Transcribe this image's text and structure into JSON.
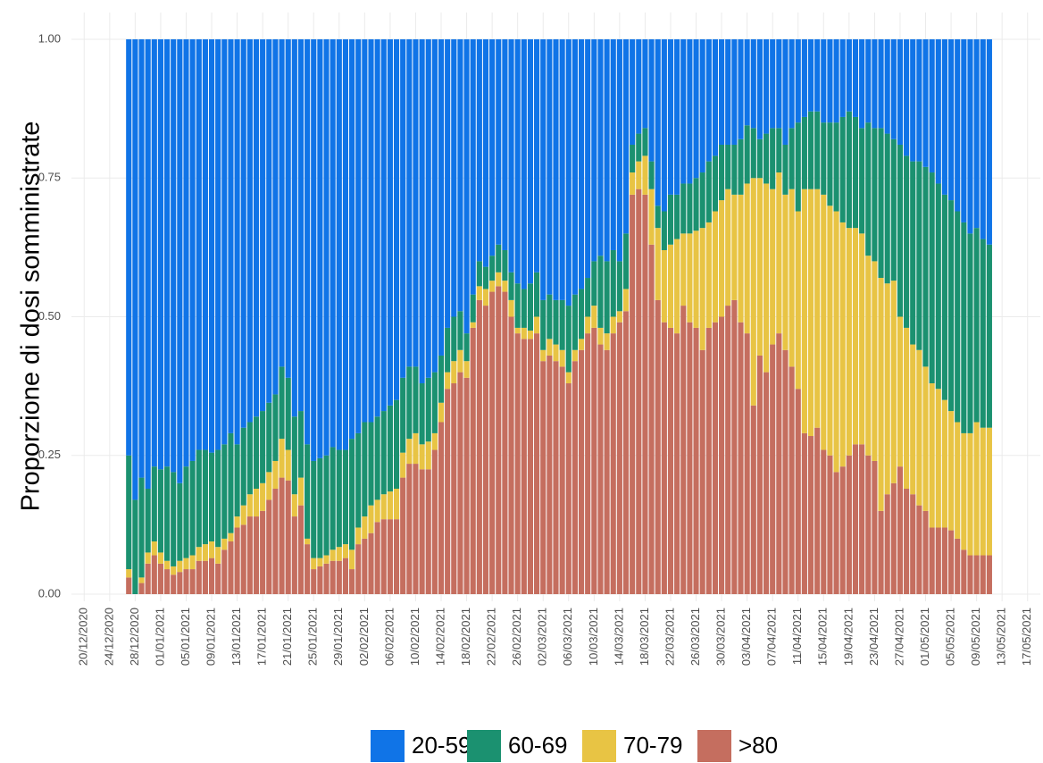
{
  "chart_data": {
    "type": "stacked_bar",
    "y_label": "Proporzione di dosi somministrate",
    "grid": true,
    "legend": "bottom",
    "x": [
      "27/12/2020",
      "28/12/2020",
      "29/12/2020",
      "30/12/2020",
      "31/12/2020",
      "01/01/2021",
      "02/01/2021",
      "03/01/2021",
      "04/01/2021",
      "05/01/2021",
      "06/01/2021",
      "07/01/2021",
      "08/01/2021",
      "09/01/2021",
      "10/01/2021",
      "11/01/2021",
      "12/01/2021",
      "13/01/2021",
      "14/01/2021",
      "15/01/2021",
      "16/01/2021",
      "17/01/2021",
      "18/01/2021",
      "19/01/2021",
      "20/01/2021",
      "21/01/2021",
      "22/01/2021",
      "23/01/2021",
      "24/01/2021",
      "25/01/2021",
      "26/01/2021",
      "27/01/2021",
      "28/01/2021",
      "29/01/2021",
      "30/01/2021",
      "31/01/2021",
      "01/02/2021",
      "02/02/2021",
      "03/02/2021",
      "04/02/2021",
      "05/02/2021",
      "06/02/2021",
      "07/02/2021",
      "08/02/2021",
      "09/02/2021",
      "10/02/2021",
      "11/02/2021",
      "12/02/2021",
      "13/02/2021",
      "14/02/2021",
      "15/02/2021",
      "16/02/2021",
      "17/02/2021",
      "18/02/2021",
      "19/02/2021",
      "20/02/2021",
      "21/02/2021",
      "22/02/2021",
      "23/02/2021",
      "24/02/2021",
      "25/02/2021",
      "26/02/2021",
      "27/02/2021",
      "28/02/2021",
      "01/03/2021",
      "02/03/2021",
      "03/03/2021",
      "04/03/2021",
      "05/03/2021",
      "06/03/2021",
      "07/03/2021",
      "08/03/2021",
      "09/03/2021",
      "10/03/2021",
      "11/03/2021",
      "12/03/2021",
      "13/03/2021",
      "14/03/2021",
      "15/03/2021",
      "16/03/2021",
      "17/03/2021",
      "18/03/2021",
      "19/03/2021",
      "20/03/2021",
      "21/03/2021",
      "22/03/2021",
      "23/03/2021",
      "24/03/2021",
      "25/03/2021",
      "26/03/2021",
      "27/03/2021",
      "28/03/2021",
      "29/03/2021",
      "30/03/2021",
      "31/03/2021",
      "01/04/2021",
      "02/04/2021",
      "03/04/2021",
      "04/04/2021",
      "05/04/2021",
      "06/04/2021",
      "07/04/2021",
      "08/04/2021",
      "09/04/2021",
      "10/04/2021",
      "11/04/2021",
      "12/04/2021",
      "13/04/2021",
      "14/04/2021",
      "15/04/2021",
      "16/04/2021",
      "17/04/2021",
      "18/04/2021",
      "19/04/2021",
      "20/04/2021",
      "21/04/2021",
      "22/04/2021",
      "23/04/2021",
      "24/04/2021",
      "25/04/2021",
      "26/04/2021",
      "27/04/2021",
      "28/04/2021",
      "29/04/2021",
      "30/04/2021",
      "01/05/2021",
      "02/05/2021",
      "03/05/2021",
      "04/05/2021",
      "05/05/2021",
      "06/05/2021",
      "07/05/2021",
      "08/05/2021",
      "09/05/2021",
      "10/05/2021",
      "11/05/2021"
    ],
    "xlim": [
      "18/12/2020",
      "19/05/2021"
    ],
    "xticks": [
      "20/12/2020",
      "24/12/2020",
      "28/12/2020",
      "01/01/2021",
      "05/01/2021",
      "09/01/2021",
      "13/01/2021",
      "17/01/2021",
      "21/01/2021",
      "25/01/2021",
      "29/01/2021",
      "02/02/2021",
      "06/02/2021",
      "10/02/2021",
      "14/02/2021",
      "18/02/2021",
      "22/02/2021",
      "26/02/2021",
      "02/03/2021",
      "06/03/2021",
      "10/03/2021",
      "14/03/2021",
      "18/03/2021",
      "22/03/2021",
      "26/03/2021",
      "30/03/2021",
      "03/04/2021",
      "07/04/2021",
      "11/04/2021",
      "15/04/2021",
      "19/04/2021",
      "23/04/2021",
      "27/04/2021",
      "01/05/2021",
      "05/05/2021",
      "09/05/2021",
      "13/05/2021",
      "17/05/2021"
    ],
    "ylim": [
      0,
      1
    ],
    "yticks": [
      {
        "value": 0,
        "label": "0.00"
      },
      {
        "value": 0.25,
        "label": "0.25"
      },
      {
        "value": 0.5,
        "label": "0.50"
      },
      {
        "value": 0.75,
        "label": "0.75"
      },
      {
        "value": 1,
        "label": "1.00"
      }
    ],
    "series": [
      {
        "name": "20-59",
        "color": "#1074e7",
        "values": [
          0.75,
          0.83,
          0.79,
          0.81,
          0.77,
          0.775,
          0.77,
          0.78,
          0.8,
          0.77,
          0.76,
          0.74,
          0.74,
          0.745,
          0.74,
          0.73,
          0.71,
          0.73,
          0.7,
          0.69,
          0.68,
          0.67,
          0.655,
          0.64,
          0.59,
          0.61,
          0.68,
          0.67,
          0.73,
          0.76,
          0.755,
          0.75,
          0.735,
          0.74,
          0.74,
          0.72,
          0.71,
          0.69,
          0.69,
          0.68,
          0.67,
          0.66,
          0.65,
          0.61,
          0.59,
          0.59,
          0.62,
          0.61,
          0.6,
          0.57,
          0.52,
          0.5,
          0.49,
          0.53,
          0.46,
          0.4,
          0.41,
          0.39,
          0.37,
          0.38,
          0.42,
          0.44,
          0.45,
          0.44,
          0.42,
          0.47,
          0.46,
          0.47,
          0.47,
          0.48,
          0.46,
          0.45,
          0.43,
          0.4,
          0.39,
          0.4,
          0.38,
          0.4,
          0.35,
          0.19,
          0.17,
          0.16,
          0.22,
          0.3,
          0.31,
          0.28,
          0.28,
          0.26,
          0.26,
          0.25,
          0.24,
          0.22,
          0.21,
          0.19,
          0.19,
          0.19,
          0.18,
          0.155,
          0.16,
          0.18,
          0.17,
          0.16,
          0.16,
          0.19,
          0.16,
          0.15,
          0.14,
          0.13,
          0.13,
          0.15,
          0.15,
          0.15,
          0.14,
          0.13,
          0.14,
          0.16,
          0.15,
          0.16,
          0.16,
          0.17,
          0.18,
          0.19,
          0.21,
          0.22,
          0.22,
          0.23,
          0.24,
          0.26,
          0.28,
          0.29,
          0.31,
          0.33,
          0.35,
          0.34,
          0.36,
          0.37
        ]
      },
      {
        "name": "60-69",
        "color": "#1b9170",
        "values": [
          0.205,
          0.17,
          0.18,
          0.115,
          0.135,
          0.15,
          0.17,
          0.17,
          0.14,
          0.165,
          0.17,
          0.175,
          0.17,
          0.16,
          0.175,
          0.17,
          0.18,
          0.13,
          0.14,
          0.13,
          0.13,
          0.13,
          0.125,
          0.12,
          0.13,
          0.13,
          0.14,
          0.12,
          0.17,
          0.175,
          0.18,
          0.18,
          0.185,
          0.175,
          0.17,
          0.2,
          0.17,
          0.17,
          0.15,
          0.15,
          0.15,
          0.155,
          0.16,
          0.135,
          0.13,
          0.12,
          0.11,
          0.115,
          0.11,
          0.085,
          0.08,
          0.08,
          0.07,
          0.05,
          0.05,
          0.045,
          0.04,
          0.045,
          0.05,
          0.055,
          0.05,
          0.08,
          0.07,
          0.085,
          0.08,
          0.09,
          0.08,
          0.08,
          0.09,
          0.12,
          0.1,
          0.09,
          0.07,
          0.08,
          0.13,
          0.13,
          0.12,
          0.09,
          0.1,
          0.05,
          0.05,
          0.05,
          0.05,
          0.04,
          0.07,
          0.09,
          0.08,
          0.09,
          0.09,
          0.095,
          0.1,
          0.11,
          0.1,
          0.1,
          0.08,
          0.09,
          0.1,
          0.105,
          0.09,
          0.07,
          0.09,
          0.11,
          0.08,
          0.09,
          0.11,
          0.16,
          0.13,
          0.14,
          0.14,
          0.13,
          0.15,
          0.16,
          0.19,
          0.21,
          0.2,
          0.19,
          0.24,
          0.24,
          0.27,
          0.27,
          0.255,
          0.31,
          0.31,
          0.33,
          0.34,
          0.36,
          0.38,
          0.37,
          0.37,
          0.38,
          0.38,
          0.38,
          0.36,
          0.35,
          0.34,
          0.33
        ]
      },
      {
        "name": "70-79",
        "color": "#e8c444",
        "values": [
          0.015,
          0,
          0.01,
          0.02,
          0.025,
          0.02,
          0.015,
          0.015,
          0.02,
          0.02,
          0.025,
          0.025,
          0.03,
          0.03,
          0.03,
          0.02,
          0.015,
          0.02,
          0.035,
          0.04,
          0.05,
          0.05,
          0.05,
          0.05,
          0.07,
          0.055,
          0.04,
          0.05,
          0.01,
          0.02,
          0.015,
          0.015,
          0.02,
          0.025,
          0.025,
          0.035,
          0.03,
          0.04,
          0.05,
          0.04,
          0.045,
          0.05,
          0.055,
          0.045,
          0.045,
          0.055,
          0.045,
          0.05,
          0.03,
          0.035,
          0.03,
          0.04,
          0.04,
          0.03,
          0.01,
          0.025,
          0.03,
          0.02,
          0.025,
          0.02,
          0.03,
          0.01,
          0.02,
          0.015,
          0.03,
          0.02,
          0.03,
          0.03,
          0.03,
          0.02,
          0.02,
          0.02,
          0.03,
          0.04,
          0.03,
          0.03,
          0.03,
          0.02,
          0.04,
          0.04,
          0.05,
          0.07,
          0.1,
          0.13,
          0.13,
          0.15,
          0.17,
          0.13,
          0.16,
          0.175,
          0.22,
          0.19,
          0.2,
          0.21,
          0.21,
          0.19,
          0.23,
          0.27,
          0.41,
          0.32,
          0.34,
          0.28,
          0.29,
          0.28,
          0.32,
          0.32,
          0.44,
          0.445,
          0.43,
          0.46,
          0.45,
          0.47,
          0.44,
          0.41,
          0.39,
          0.38,
          0.36,
          0.36,
          0.42,
          0.38,
          0.365,
          0.27,
          0.29,
          0.27,
          0.28,
          0.26,
          0.26,
          0.25,
          0.23,
          0.215,
          0.21,
          0.21,
          0.22,
          0.24,
          0.23,
          0.23
        ]
      },
      {
        "name": ">80",
        "color": "#c56e5f",
        "values": [
          0.03,
          0,
          0.02,
          0.055,
          0.07,
          0.055,
          0.045,
          0.035,
          0.04,
          0.045,
          0.045,
          0.06,
          0.06,
          0.065,
          0.055,
          0.08,
          0.095,
          0.12,
          0.125,
          0.14,
          0.14,
          0.15,
          0.17,
          0.19,
          0.21,
          0.205,
          0.14,
          0.16,
          0.09,
          0.045,
          0.05,
          0.055,
          0.06,
          0.06,
          0.065,
          0.045,
          0.09,
          0.1,
          0.11,
          0.13,
          0.135,
          0.135,
          0.135,
          0.21,
          0.235,
          0.235,
          0.225,
          0.225,
          0.26,
          0.31,
          0.37,
          0.38,
          0.4,
          0.39,
          0.48,
          0.53,
          0.52,
          0.545,
          0.555,
          0.545,
          0.5,
          0.47,
          0.46,
          0.46,
          0.47,
          0.42,
          0.43,
          0.42,
          0.41,
          0.38,
          0.42,
          0.44,
          0.47,
          0.48,
          0.45,
          0.44,
          0.47,
          0.49,
          0.51,
          0.72,
          0.73,
          0.72,
          0.63,
          0.53,
          0.49,
          0.48,
          0.47,
          0.52,
          0.49,
          0.48,
          0.44,
          0.48,
          0.49,
          0.5,
          0.52,
          0.53,
          0.49,
          0.47,
          0.34,
          0.43,
          0.4,
          0.45,
          0.47,
          0.44,
          0.41,
          0.37,
          0.29,
          0.285,
          0.3,
          0.26,
          0.25,
          0.22,
          0.23,
          0.25,
          0.27,
          0.27,
          0.25,
          0.24,
          0.15,
          0.18,
          0.2,
          0.23,
          0.19,
          0.18,
          0.16,
          0.15,
          0.12,
          0.12,
          0.12,
          0.115,
          0.1,
          0.08,
          0.07,
          0.07,
          0.07,
          0.07
        ]
      }
    ]
  }
}
